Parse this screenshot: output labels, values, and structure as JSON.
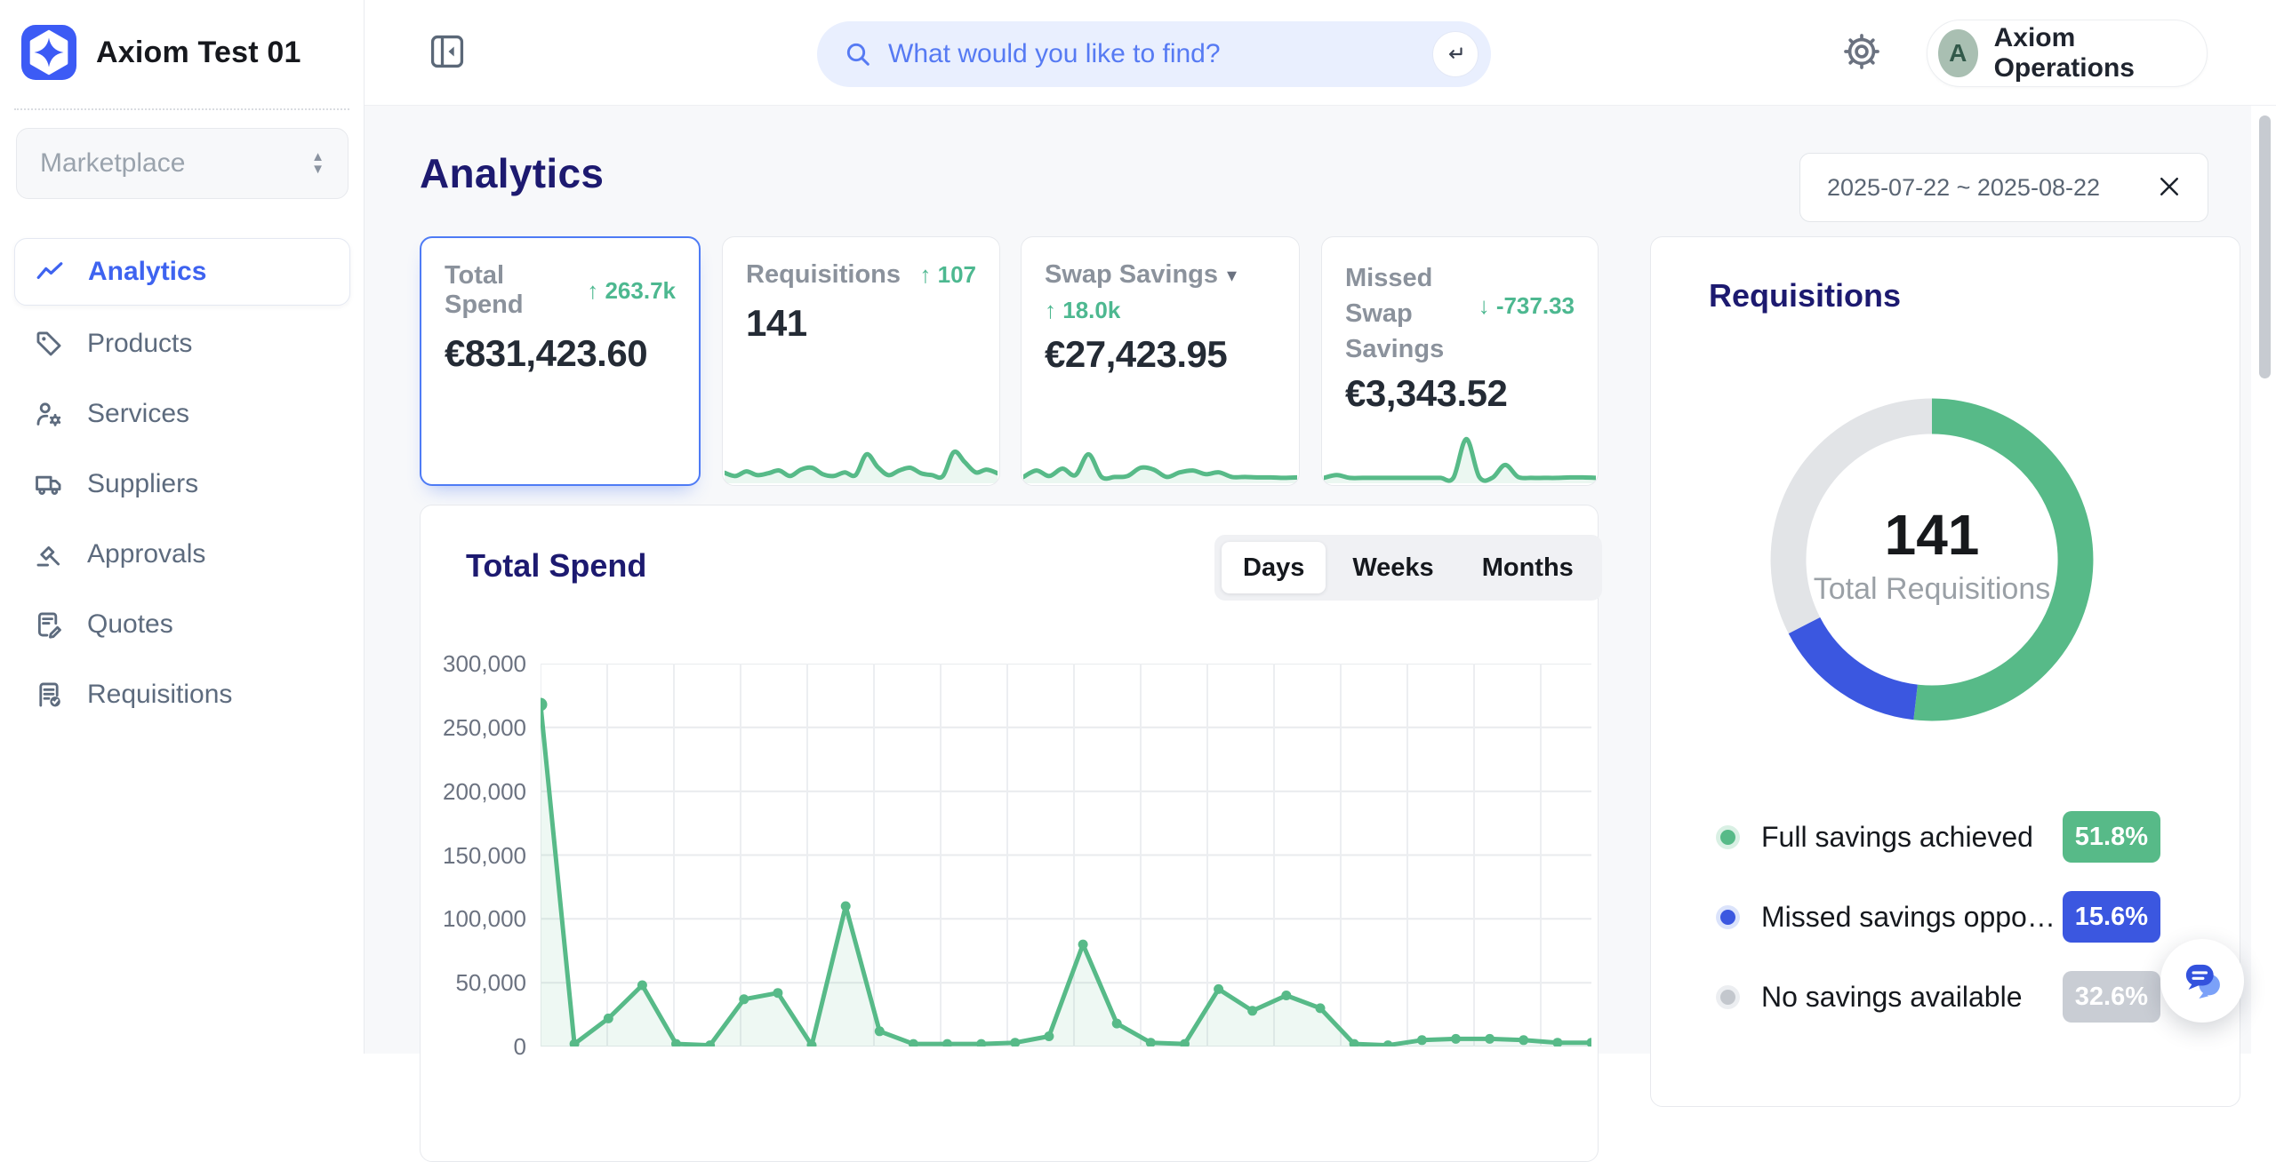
{
  "app": {
    "name": "Axiom Test 01"
  },
  "sidebar": {
    "workspace_selector": {
      "value": "Marketplace"
    },
    "items": [
      {
        "label": "Analytics",
        "icon": "trend-line-icon",
        "active": true
      },
      {
        "label": "Products",
        "icon": "tag-icon",
        "active": false
      },
      {
        "label": "Services",
        "icon": "user-gear-icon",
        "active": false
      },
      {
        "label": "Suppliers",
        "icon": "truck-icon",
        "active": false
      },
      {
        "label": "Approvals",
        "icon": "approval-stamp-icon",
        "active": false
      },
      {
        "label": "Quotes",
        "icon": "document-pencil-icon",
        "active": false
      },
      {
        "label": "Requisitions",
        "icon": "document-check-icon",
        "active": false
      }
    ]
  },
  "topbar": {
    "search": {
      "placeholder": "What would you like to find?"
    },
    "account": {
      "initial": "A",
      "name": "Axiom Operations"
    }
  },
  "page": {
    "title": "Analytics",
    "date_range": {
      "value": "2025-07-22 ~ 2025-08-22"
    }
  },
  "icons": {
    "arrow_up": "↑",
    "arrow_down": "↓",
    "dropdown_caret": "▾",
    "caret_up": "▲",
    "caret_down": "▼"
  },
  "kpi": {
    "cards": [
      {
        "label": "Total Spend",
        "delta_arrow": "↑",
        "delta": "263.7k",
        "value": "€831,423.60",
        "selected": true
      },
      {
        "label": "Requisitions",
        "delta_arrow": "↑",
        "delta": "107",
        "value": "141",
        "selected": false
      },
      {
        "label": "Swap Savings",
        "delta_arrow": "↑",
        "delta": "18.0k",
        "value": "€27,423.95",
        "has_dropdown": true,
        "selected": false
      },
      {
        "label": "Missed Swap Savings",
        "delta_arrow": "↓",
        "delta": "-737.33",
        "value": "€3,343.52",
        "selected": false
      }
    ]
  },
  "spend_section": {
    "title": "Total Spend",
    "tabs": [
      {
        "label": "Days",
        "active": true
      },
      {
        "label": "Weeks",
        "active": false
      },
      {
        "label": "Months",
        "active": false
      }
    ],
    "yticks": [
      "300,000",
      "250,000",
      "200,000",
      "150,000",
      "100,000",
      "50,000",
      "0"
    ]
  },
  "requisitions_panel": {
    "title": "Requisitions",
    "center_value": "141",
    "center_label": "Total Requisitions",
    "legend": [
      {
        "label": "Full savings achieved",
        "pct": "51.8%",
        "color": "#57ba88"
      },
      {
        "label": "Missed savings oppo…",
        "pct": "15.6%",
        "color": "#3b57e0"
      },
      {
        "label": "No savings available",
        "pct": "32.6%",
        "color": "#c9cdd4"
      }
    ]
  },
  "chart_data": [
    {
      "type": "line",
      "title": "Total Spend",
      "x_unit": "days",
      "x_range": [
        "2025-07-22",
        "2025-08-22"
      ],
      "values": [
        268000,
        2000,
        22000,
        48000,
        2000,
        1000,
        37000,
        42000,
        1000,
        110000,
        12000,
        2000,
        2000,
        2000,
        3000,
        8000,
        80000,
        18000,
        3000,
        2000,
        45000,
        28000,
        40000,
        30000,
        2000,
        1000,
        5000,
        6000,
        6000,
        5000,
        3000,
        3000
      ],
      "ylim": [
        0,
        300000
      ],
      "yticks": [
        0,
        50000,
        100000,
        150000,
        200000,
        250000,
        300000
      ],
      "grid": true,
      "color": "#57ba88"
    },
    {
      "type": "pie",
      "title": "Requisitions",
      "center_value": "141",
      "center_label": "Total Requisitions",
      "slices": [
        {
          "label": "Full savings achieved",
          "value": 51.8,
          "color": "#57ba88"
        },
        {
          "label": "Missed savings opportunity",
          "value": 15.6,
          "color": "#3b57e0"
        },
        {
          "label": "No savings available",
          "value": 32.6,
          "color": "#e2e4e7"
        }
      ]
    },
    {
      "type": "sparkline",
      "target": "spark-req",
      "title": "Requisitions trend",
      "color": "#57ba88",
      "values": [
        15,
        8,
        18,
        10,
        14,
        20,
        8,
        22,
        26,
        12,
        8,
        16,
        10,
        55,
        28,
        10,
        20,
        26,
        14,
        10,
        8,
        60,
        38,
        16,
        22,
        14
      ]
    },
    {
      "type": "sparkline",
      "target": "spark-swap",
      "title": "Swap Savings trend",
      "color": "#57ba88",
      "values": [
        6,
        20,
        8,
        24,
        10,
        55,
        6,
        6,
        8,
        26,
        22,
        6,
        16,
        20,
        12,
        16,
        6,
        6,
        5,
        5,
        4,
        5
      ]
    },
    {
      "type": "sparkline",
      "target": "spark-missed",
      "title": "Missed Swap Savings trend",
      "color": "#57ba88",
      "values": [
        4,
        10,
        4,
        4,
        4,
        4,
        4,
        4,
        4,
        4,
        4,
        88,
        6,
        4,
        32,
        6,
        4,
        4,
        4,
        5,
        5,
        4
      ]
    }
  ]
}
